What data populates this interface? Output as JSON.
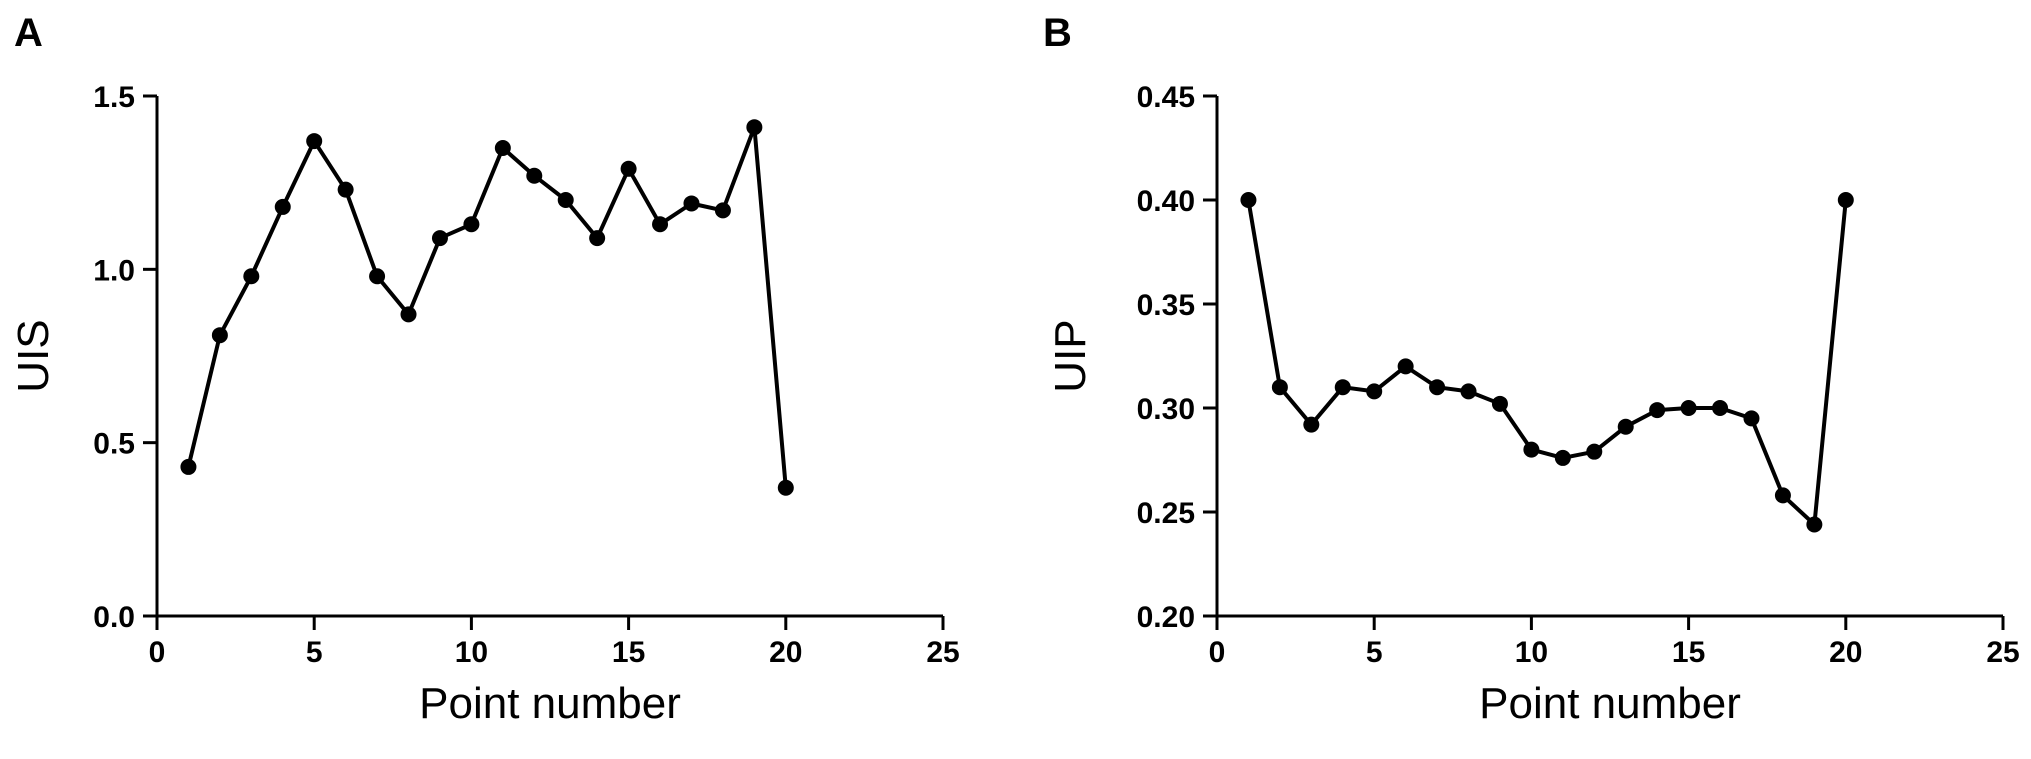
{
  "chart_data": [
    {
      "type": "line",
      "panel_label": "A",
      "title": "",
      "xlabel": "Point number",
      "ylabel": "UIS",
      "xlim": [
        0,
        25
      ],
      "ylim": [
        0.0,
        1.5
      ],
      "xticks": [
        0,
        5,
        10,
        15,
        20,
        25
      ],
      "xtick_labels": [
        "0",
        "5",
        "10",
        "15",
        "20",
        "25"
      ],
      "yticks": [
        0.0,
        0.5,
        1.0,
        1.5
      ],
      "ytick_labels": [
        "0.0",
        "0.5",
        "1.0",
        "1.5"
      ],
      "grid": false,
      "series": [
        {
          "x": [
            1,
            2,
            3,
            4,
            5,
            6,
            7,
            8,
            9,
            10,
            11,
            12,
            13,
            14,
            15,
            16,
            17,
            18,
            19,
            20
          ],
          "values": [
            0.43,
            0.81,
            0.98,
            1.18,
            1.37,
            1.23,
            0.98,
            0.87,
            1.09,
            1.13,
            1.35,
            1.27,
            1.2,
            1.09,
            1.29,
            1.13,
            1.19,
            1.17,
            1.41,
            0.37
          ]
        }
      ]
    },
    {
      "type": "line",
      "panel_label": "B",
      "title": "",
      "xlabel": "Point number",
      "ylabel": "UIP",
      "xlim": [
        0,
        25
      ],
      "ylim": [
        0.2,
        0.45
      ],
      "xticks": [
        0,
        5,
        10,
        15,
        20,
        25
      ],
      "xtick_labels": [
        "0",
        "5",
        "10",
        "15",
        "20",
        "25"
      ],
      "yticks": [
        0.2,
        0.25,
        0.3,
        0.35,
        0.4,
        0.45
      ],
      "ytick_labels": [
        "0.20",
        "0.25",
        "0.30",
        "0.35",
        "0.40",
        "0.45"
      ],
      "grid": false,
      "series": [
        {
          "x": [
            1,
            2,
            3,
            4,
            5,
            6,
            7,
            8,
            9,
            10,
            11,
            12,
            13,
            14,
            15,
            16,
            17,
            18,
            19,
            20
          ],
          "values": [
            0.4,
            0.31,
            0.292,
            0.31,
            0.308,
            0.32,
            0.31,
            0.308,
            0.302,
            0.28,
            0.276,
            0.279,
            0.291,
            0.299,
            0.3,
            0.3,
            0.295,
            0.258,
            0.244,
            0.4
          ]
        }
      ]
    }
  ]
}
